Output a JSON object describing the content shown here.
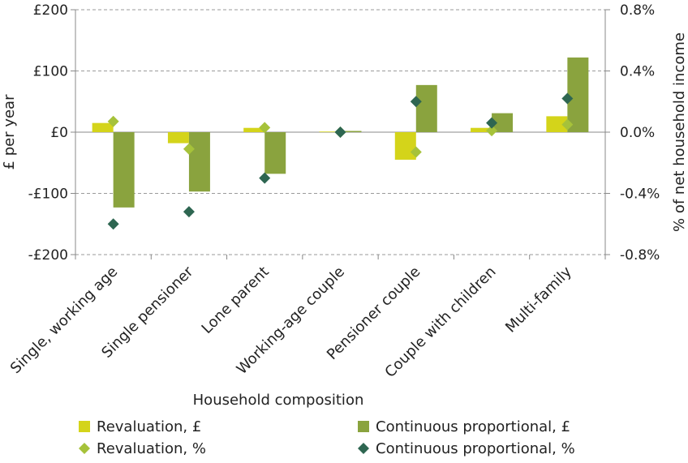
{
  "chart_data": {
    "type": "bar",
    "title": "",
    "xlabel": "Household composition",
    "ylabel": "£ per year",
    "y2label": "% of net household income",
    "ylim": [
      -200,
      200
    ],
    "y2lim": [
      -0.8,
      0.8
    ],
    "grid": true,
    "legend_position": "bottom",
    "yticks": [
      {
        "value": 200,
        "label": "£200"
      },
      {
        "value": 100,
        "label": "£100"
      },
      {
        "value": 0,
        "label": "£0"
      },
      {
        "value": -100,
        "label": "-£100"
      },
      {
        "value": -200,
        "label": "-£200"
      }
    ],
    "y2ticks": [
      {
        "value": 0.8,
        "label": "0.8%"
      },
      {
        "value": 0.4,
        "label": "0.4%"
      },
      {
        "value": 0.0,
        "label": "0.0%"
      },
      {
        "value": -0.4,
        "label": "-0.4%"
      },
      {
        "value": -0.8,
        "label": "-0.8%"
      }
    ],
    "categories": [
      "Single, working age",
      "Single pensioner",
      "Lone parent",
      "Working-age couple",
      "Pensioner couple",
      "Couple with children",
      "Multi-family"
    ],
    "series": [
      {
        "name": "Revaluation, £",
        "kind": "bar",
        "axis": "left",
        "color": "#d4d41a",
        "values": [
          15,
          -18,
          7,
          1,
          -45,
          7,
          26
        ]
      },
      {
        "name": "Continuous proportional, £",
        "kind": "bar",
        "axis": "left",
        "color": "#8aa33e",
        "values": [
          -123,
          -97,
          -68,
          2,
          77,
          31,
          122
        ]
      },
      {
        "name": "Revaluation, %",
        "kind": "marker",
        "axis": "right",
        "color": "#a6c23a",
        "values": [
          0.07,
          -0.11,
          0.03,
          0.0,
          -0.13,
          0.01,
          0.05
        ]
      },
      {
        "name": "Continuous proportional, %",
        "kind": "marker",
        "axis": "right",
        "color": "#2e6651",
        "values": [
          -0.6,
          -0.52,
          -0.3,
          0.0,
          0.2,
          0.06,
          0.22
        ]
      }
    ]
  }
}
